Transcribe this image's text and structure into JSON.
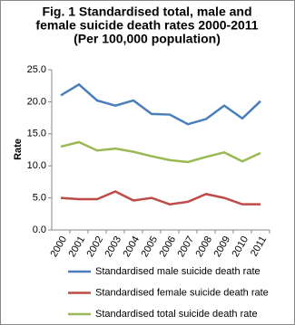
{
  "chart_data": {
    "type": "line",
    "title": [
      "Fig. 1  Standardised total, male and",
      "female suicide death rates 2000-2011",
      "(Per 100,000 population)"
    ],
    "y_label": "Rate",
    "categories": [
      "2000",
      "2001",
      "2002",
      "2003",
      "2004",
      "2005",
      "2006",
      "2007",
      "2008",
      "2009",
      "2010",
      "2011"
    ],
    "series": [
      {
        "name": "Standardised male suicide death rate",
        "color": "#4a7ebb",
        "values": [
          21.0,
          22.7,
          20.2,
          19.4,
          20.2,
          18.1,
          18.0,
          16.5,
          17.3,
          19.4,
          17.4,
          20.1
        ]
      },
      {
        "name": "Standardised female suicide death rate",
        "color": "#be4b48",
        "values": [
          5.0,
          4.8,
          4.8,
          6.0,
          4.6,
          5.0,
          4.0,
          4.4,
          5.6,
          5.0,
          4.0,
          4.0
        ]
      },
      {
        "name": "Standardised total suicide death rate",
        "color": "#98b954",
        "values": [
          13.0,
          13.7,
          12.4,
          12.7,
          12.2,
          11.5,
          10.9,
          10.6,
          11.4,
          12.1,
          10.7,
          12.0
        ]
      }
    ],
    "ylim": [
      0,
      25
    ],
    "yticks": [
      {
        "value": 0,
        "label": "0.0"
      },
      {
        "value": 5,
        "label": "5.0"
      },
      {
        "value": 10,
        "label": "10.0"
      },
      {
        "value": 15,
        "label": "15.0"
      },
      {
        "value": 20,
        "label": "20.0"
      },
      {
        "value": 25,
        "label": "25.0"
      }
    ],
    "grid": false,
    "legend": "bottom"
  }
}
